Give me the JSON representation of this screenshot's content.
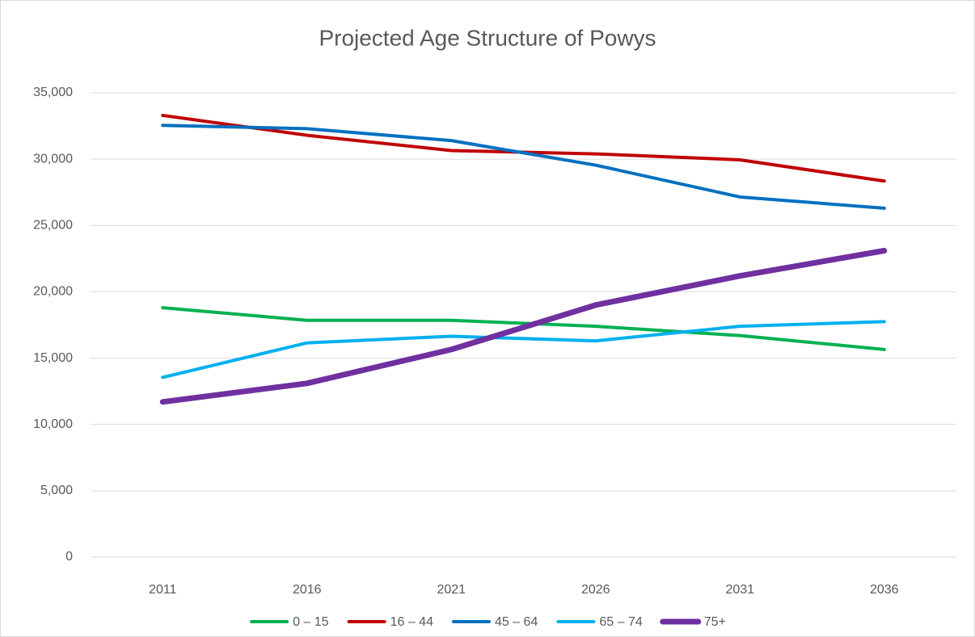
{
  "chart_data": {
    "type": "line",
    "title": "Projected Age Structure of Powys",
    "categories": [
      "2011",
      "2016",
      "2021",
      "2026",
      "2031",
      "2036"
    ],
    "series": [
      {
        "name": "0 – 15",
        "color": "#00b050",
        "values": [
          18800,
          17850,
          17850,
          17400,
          16700,
          15650
        ]
      },
      {
        "name": "16 – 44",
        "color": "#c00000",
        "values": [
          33300,
          31800,
          30650,
          30400,
          29950,
          28350
        ]
      },
      {
        "name": "45 – 64",
        "color": "#0070c0",
        "values": [
          32550,
          32300,
          31400,
          29550,
          27150,
          26300
        ]
      },
      {
        "name": "65 – 74",
        "color": "#00b0f0",
        "values": [
          13550,
          16150,
          16650,
          16300,
          17400,
          17750
        ]
      },
      {
        "name": "75+",
        "color": "#7030a0",
        "values": [
          11700,
          13100,
          15650,
          19000,
          21200,
          23100
        ]
      }
    ],
    "ylim": [
      0,
      35000
    ],
    "yticks": [
      0,
      {
        "value": 5000,
        "label": "5,000"
      },
      {
        "value": 10000,
        "label": "10,000"
      },
      {
        "value": 15000,
        "label": "15,000"
      },
      {
        "value": 20000,
        "label": "20,000"
      },
      {
        "value": 25000,
        "label": "25,000"
      },
      {
        "value": 30000,
        "label": "30,000"
      },
      {
        "value": 35000,
        "label": "35,000"
      }
    ],
    "grid": true,
    "legend": "bottom"
  }
}
